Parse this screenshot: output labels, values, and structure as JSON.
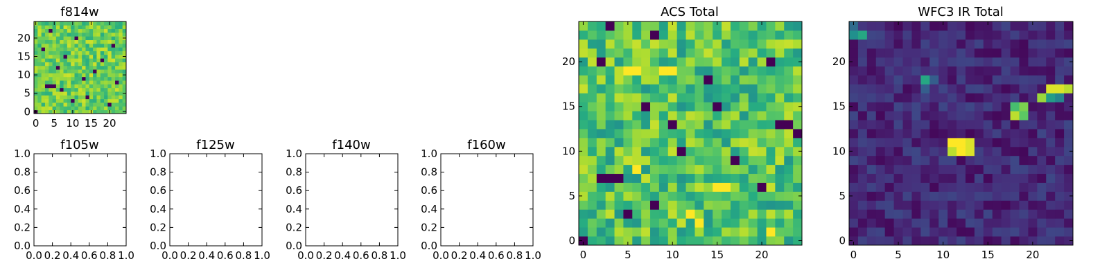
{
  "chart_data": [
    {
      "type": "heatmap",
      "title": "f814w",
      "grid_size": [
        25,
        25
      ],
      "xlim": [
        -0.5,
        24.5
      ],
      "ylim": [
        -0.5,
        24.5
      ],
      "xticks": [
        0,
        5,
        10,
        15,
        20
      ],
      "yticks": [
        0,
        5,
        10,
        15,
        20
      ],
      "xtick_labels": [
        "0",
        "5",
        "10",
        "15",
        "20"
      ],
      "ytick_labels": [
        "0",
        "5",
        "10",
        "15",
        "20"
      ],
      "colormap": "viridis",
      "origin": "lower",
      "background_level": 0.78,
      "noise_amplitude": 0.15,
      "low_cells": [
        [
          0,
          0
        ],
        [
          3,
          7
        ],
        [
          4,
          7
        ],
        [
          5,
          7
        ],
        [
          2,
          17
        ],
        [
          6,
          12
        ],
        [
          7,
          6
        ],
        [
          13,
          9
        ],
        [
          16,
          11
        ],
        [
          10,
          3
        ],
        [
          18,
          14
        ],
        [
          21,
          18
        ],
        [
          4,
          22
        ],
        [
          11,
          20
        ],
        [
          8,
          15
        ],
        [
          14,
          4
        ],
        [
          22,
          8
        ],
        [
          20,
          2
        ]
      ],
      "seed": 3
    },
    {
      "type": "heatmap",
      "title": "f105w",
      "empty": true,
      "xlim": [
        0.0,
        1.0
      ],
      "ylim": [
        0.0,
        1.0
      ],
      "xtick_labels": [
        "0.0",
        "0.2",
        "0.4",
        "0.6",
        "0.8",
        "1.0"
      ],
      "ytick_labels": [
        "0.0",
        "0.2",
        "0.4",
        "0.6",
        "0.8",
        "1.0"
      ]
    },
    {
      "type": "heatmap",
      "title": "f125w",
      "empty": true,
      "xlim": [
        0.0,
        1.0
      ],
      "ylim": [
        0.0,
        1.0
      ],
      "xtick_labels": [
        "0.0",
        "0.2",
        "0.4",
        "0.6",
        "0.8",
        "1.0"
      ],
      "ytick_labels": [
        "0.0",
        "0.2",
        "0.4",
        "0.6",
        "0.8",
        "1.0"
      ]
    },
    {
      "type": "heatmap",
      "title": "f140w",
      "empty": true,
      "xlim": [
        0.0,
        1.0
      ],
      "ylim": [
        0.0,
        1.0
      ],
      "xtick_labels": [
        "0.0",
        "0.2",
        "0.4",
        "0.6",
        "0.8",
        "1.0"
      ],
      "ytick_labels": [
        "0.0",
        "0.2",
        "0.4",
        "0.6",
        "0.8",
        "1.0"
      ]
    },
    {
      "type": "heatmap",
      "title": "f160w",
      "empty": true,
      "xlim": [
        0.0,
        1.0
      ],
      "ylim": [
        0.0,
        1.0
      ],
      "xtick_labels": [
        "0.0",
        "0.2",
        "0.4",
        "0.6",
        "0.8",
        "1.0"
      ],
      "ytick_labels": [
        "0.0",
        "0.2",
        "0.4",
        "0.6",
        "0.8",
        "1.0"
      ]
    },
    {
      "type": "heatmap",
      "title": "ACS Total",
      "grid_size": [
        25,
        25
      ],
      "xlim": [
        -0.5,
        24.5
      ],
      "ylim": [
        -0.5,
        24.5
      ],
      "xticks": [
        0,
        5,
        10,
        15,
        20
      ],
      "yticks": [
        0,
        5,
        10,
        15,
        20
      ],
      "xtick_labels": [
        "0",
        "5",
        "10",
        "15",
        "20"
      ],
      "ytick_labels": [
        "0",
        "5",
        "10",
        "15",
        "20"
      ],
      "colormap": "viridis",
      "origin": "lower",
      "background_level": 0.72,
      "noise_amplitude": 0.2,
      "low_cells": [
        [
          0,
          0
        ],
        [
          2,
          7
        ],
        [
          3,
          7
        ],
        [
          4,
          7
        ],
        [
          5,
          3
        ],
        [
          7,
          15
        ],
        [
          8,
          4
        ],
        [
          15,
          15
        ],
        [
          21,
          20
        ],
        [
          20,
          6
        ],
        [
          2,
          20
        ],
        [
          8,
          23
        ],
        [
          3,
          24
        ],
        [
          10,
          13
        ],
        [
          14,
          18
        ],
        [
          11,
          10
        ],
        [
          22,
          13
        ],
        [
          23,
          13
        ],
        [
          17,
          9
        ],
        [
          24,
          12
        ]
      ],
      "high_cells": [
        [
          9,
          19
        ],
        [
          10,
          19
        ],
        [
          5,
          19
        ],
        [
          6,
          19
        ],
        [
          15,
          6
        ],
        [
          16,
          6
        ],
        [
          13,
          2
        ],
        [
          21,
          1
        ],
        [
          12,
          3
        ],
        [
          6,
          8
        ]
      ],
      "seed": 11
    },
    {
      "type": "heatmap",
      "title": "WFC3 IR Total",
      "grid_size": [
        25,
        25
      ],
      "xlim": [
        -0.5,
        24.5
      ],
      "ylim": [
        -0.5,
        24.5
      ],
      "xticks": [
        0,
        5,
        10,
        15,
        20
      ],
      "yticks": [
        0,
        5,
        10,
        15,
        20
      ],
      "xtick_labels": [
        "0",
        "5",
        "10",
        "15",
        "20"
      ],
      "ytick_labels": [
        "0",
        "5",
        "10",
        "15",
        "20"
      ],
      "colormap": "viridis",
      "origin": "lower",
      "background_level": 0.12,
      "noise_amplitude": 0.1,
      "sources": [
        {
          "x": 11,
          "y": 11,
          "value": 1.0
        },
        {
          "x": 12,
          "y": 11,
          "value": 1.0
        },
        {
          "x": 11,
          "y": 10,
          "value": 0.9
        },
        {
          "x": 12,
          "y": 10,
          "value": 1.0
        },
        {
          "x": 13,
          "y": 10,
          "value": 0.95
        },
        {
          "x": 13,
          "y": 11,
          "value": 0.95
        },
        {
          "x": 18,
          "y": 14,
          "value": 0.9
        },
        {
          "x": 19,
          "y": 14,
          "value": 0.75
        },
        {
          "x": 18,
          "y": 15,
          "value": 0.7
        },
        {
          "x": 19,
          "y": 15,
          "value": 0.8
        },
        {
          "x": 22,
          "y": 17,
          "value": 0.95
        },
        {
          "x": 23,
          "y": 17,
          "value": 0.95
        },
        {
          "x": 24,
          "y": 17,
          "value": 0.9
        },
        {
          "x": 21,
          "y": 16,
          "value": 0.85
        },
        {
          "x": 22,
          "y": 16,
          "value": 0.55
        },
        {
          "x": 23,
          "y": 16,
          "value": 0.45
        },
        {
          "x": 8,
          "y": 18,
          "value": 0.6
        },
        {
          "x": 8,
          "y": 17,
          "value": 0.3
        },
        {
          "x": 9,
          "y": 18,
          "value": 0.3
        },
        {
          "x": 0,
          "y": 23,
          "value": 0.5
        },
        {
          "x": 1,
          "y": 23,
          "value": 0.6
        },
        {
          "x": 0,
          "y": 24,
          "value": 0.35
        }
      ],
      "seed": 29
    }
  ]
}
